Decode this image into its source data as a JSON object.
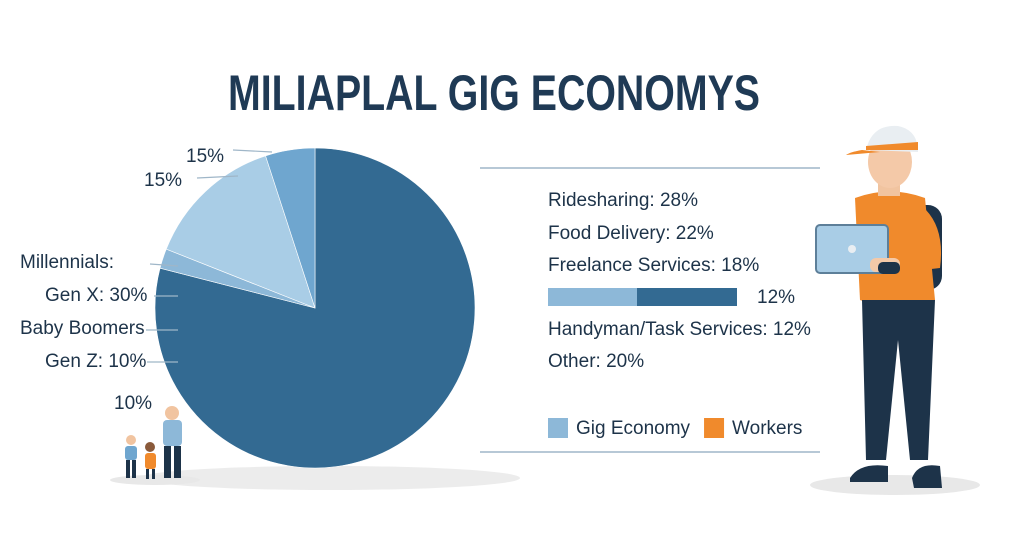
{
  "title": "MILIAPLAL GIG ECONOMYS",
  "chart_data": {
    "type": "pie",
    "values": [
      79,
      2,
      14,
      5
    ],
    "colors": [
      "#336a92",
      "#8db8d8",
      "#a9cde6",
      "#6fa6cf"
    ]
  },
  "pie_labels": [
    "15%",
    "15%",
    "Millennials:",
    "Gen X: 30%",
    "Baby Boomers",
    "Gen Z: 10%",
    "10%"
  ],
  "breakdown": [
    "Ridesharing: 28%",
    "Food Delivery: 22%",
    "Freelance Services: 18%",
    "Handyman/Task Services: 12%",
    "Other: 20%"
  ],
  "bar_label": "12%",
  "legend": [
    {
      "label": "Gig Economy",
      "color": "#8db8d8"
    },
    {
      "label": "Workers",
      "color": "#f08a2c"
    }
  ]
}
